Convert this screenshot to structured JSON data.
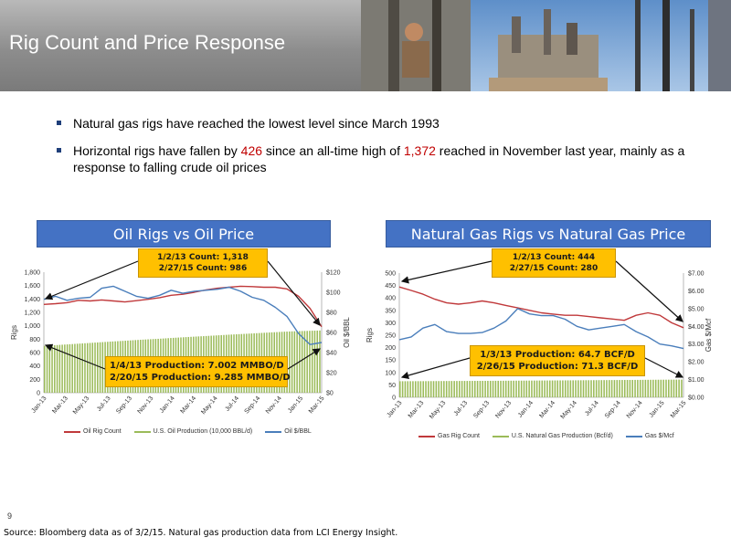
{
  "slide": {
    "title": "Rig Count and Price Response",
    "page_number": "9",
    "source": "Source: Bloomberg data as of 3/2/15. Natural gas production data from LCI Energy Insight."
  },
  "bullets": [
    {
      "text": "Natural gas rigs have reached the lowest level since March 1993"
    },
    {
      "pre": "Horizontal rigs have fallen by ",
      "num1": "426",
      "mid": " since an all-time high of ",
      "num2": "1,372",
      "post": " reached in November last year, mainly as a  response to falling crude oil prices"
    }
  ],
  "colors": {
    "rig_line": "#c0393b",
    "production_bars": "#9bbb59",
    "price_line": "#4a7ebb",
    "title_bar": "#4472c4",
    "callout": "#ffc000",
    "highlight_text": "#c00000"
  },
  "chart_data": [
    {
      "type": "line",
      "title": "Oil Rigs vs Oil Price",
      "ylabel": "Rigs",
      "y2label": "Oil $/BBL",
      "x_tick_labels": [
        "Jan-13",
        "Mar-13",
        "May-13",
        "Jul-13",
        "Sep-13",
        "Nov-13",
        "Jan-14",
        "Mar-14",
        "May-14",
        "Jul-14",
        "Sep-14",
        "Nov-14",
        "Jan-15",
        "Mar-15"
      ],
      "y_ticks": [
        "0",
        "200",
        "400",
        "600",
        "800",
        "1,000",
        "1,200",
        "1,400",
        "1,600",
        "1,800"
      ],
      "y2_ticks": [
        "$0",
        "$20",
        "$40",
        "$60",
        "$80",
        "$100",
        "$120"
      ],
      "ylim": [
        0,
        1800
      ],
      "y2lim": [
        0,
        120
      ],
      "grid": false,
      "legend_position": "bottom",
      "legend": [
        "Oil Rig Count",
        "U.S. Oil Production (10,000 BBL/d)",
        "Oil $/BBL"
      ],
      "callouts": {
        "count": [
          "1/2/13 Count: 1,318",
          "2/27/15 Count: 986"
        ],
        "production": [
          "1/4/13 Production: 7.002 MMBO/D",
          "2/20/15 Production: 9.285 MMBO/D"
        ]
      },
      "series": [
        {
          "name": "Oil Rig Count",
          "axis": "left",
          "values": [
            1318,
            1330,
            1345,
            1380,
            1370,
            1385,
            1370,
            1355,
            1375,
            1395,
            1420,
            1455,
            1470,
            1500,
            1535,
            1560,
            1575,
            1590,
            1585,
            1575,
            1575,
            1550,
            1440,
            1260,
            986
          ]
        },
        {
          "name": "U.S. Oil Production (10,000 BBL/d)",
          "axis": "left",
          "values": [
            700,
            711,
            722,
            733,
            744,
            755,
            766,
            776,
            787,
            797,
            806,
            817,
            827,
            837,
            846,
            856,
            866,
            875,
            884,
            894,
            903,
            912,
            919,
            924,
            929
          ]
        },
        {
          "name": "Oil $/BBL",
          "axis": "right",
          "values": [
            93,
            96,
            92,
            94,
            95,
            104,
            106,
            101,
            96,
            94,
            97,
            102,
            99,
            101,
            102,
            103,
            105,
            101,
            95,
            92,
            85,
            76,
            59,
            48,
            50
          ]
        }
      ]
    },
    {
      "type": "line",
      "title": "Natural Gas Rigs vs Natural Gas Price",
      "ylabel": "Rigs",
      "y2label": "Gas $/Mcf",
      "x_tick_labels": [
        "Jan-13",
        "Mar-13",
        "May-13",
        "Jul-13",
        "Sep-13",
        "Nov-13",
        "Jan-14",
        "Mar-14",
        "May-14",
        "Jul-14",
        "Sep-14",
        "Nov-14",
        "Jan-15",
        "Mar-15"
      ],
      "y_ticks": [
        "0",
        "50",
        "100",
        "150",
        "200",
        "250",
        "300",
        "350",
        "400",
        "450",
        "500"
      ],
      "y2_ticks": [
        "$0.00",
        "$1.00",
        "$2.00",
        "$3.00",
        "$4.00",
        "$5.00",
        "$6.00",
        "$7.00"
      ],
      "ylim": [
        0,
        500
      ],
      "y2lim": [
        0,
        7
      ],
      "grid": false,
      "legend_position": "bottom",
      "legend": [
        "Gas Rig Count",
        "U.S. Natural Gas Production (Bcf/d)",
        "Gas $/Mcf"
      ],
      "callouts": {
        "count": [
          "1/2/13 Count: 444",
          "2/27/15 Count: 280"
        ],
        "production": [
          "1/3/13 Production: 64.7 BCF/D",
          "2/26/15 Production: 71.3 BCF/D"
        ]
      },
      "series": [
        {
          "name": "Gas Rig Count",
          "axis": "left",
          "values": [
            444,
            430,
            415,
            395,
            380,
            375,
            380,
            388,
            380,
            370,
            360,
            350,
            340,
            335,
            330,
            330,
            325,
            320,
            315,
            310,
            330,
            340,
            330,
            300,
            280
          ]
        },
        {
          "name": "U.S. Natural Gas Production (Bcf/d)",
          "axis": "left",
          "values": [
            64.7,
            64.9,
            65.0,
            65.3,
            65.6,
            65.8,
            66.0,
            66.2,
            66.4,
            66.7,
            67.0,
            67.3,
            67.6,
            67.9,
            68.2,
            68.5,
            68.8,
            69.1,
            69.4,
            69.7,
            70.0,
            70.4,
            70.7,
            71.0,
            71.3
          ]
        },
        {
          "name": "Gas $/Mcf",
          "axis": "right",
          "values": [
            3.25,
            3.4,
            3.9,
            4.1,
            3.7,
            3.6,
            3.6,
            3.65,
            3.9,
            4.3,
            5.0,
            4.7,
            4.6,
            4.6,
            4.4,
            4.0,
            3.8,
            3.9,
            4.0,
            4.1,
            3.7,
            3.4,
            3.0,
            2.9,
            2.75
          ]
        }
      ]
    }
  ]
}
